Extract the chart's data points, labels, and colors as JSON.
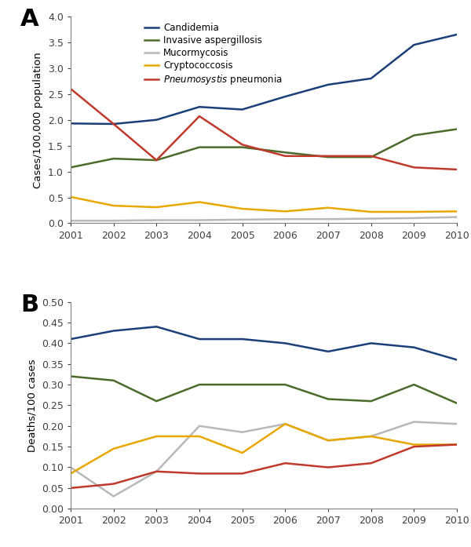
{
  "years": [
    2001,
    2002,
    2003,
    2004,
    2005,
    2006,
    2007,
    2008,
    2009,
    2010
  ],
  "panel_A": {
    "candidemia": [
      1.93,
      1.92,
      2.0,
      2.25,
      2.2,
      2.45,
      2.68,
      2.8,
      3.45,
      3.65
    ],
    "inv_aspergillosis": [
      1.08,
      1.25,
      1.22,
      1.47,
      1.47,
      1.37,
      1.28,
      1.28,
      1.7,
      1.82
    ],
    "mucormycosis": [
      0.05,
      0.05,
      0.06,
      0.06,
      0.07,
      0.08,
      0.08,
      0.09,
      0.1,
      0.12
    ],
    "cryptococcosis": [
      0.51,
      0.34,
      0.31,
      0.41,
      0.28,
      0.23,
      0.3,
      0.22,
      0.22,
      0.23
    ],
    "pneumocystosis": [
      2.6,
      1.92,
      1.22,
      2.07,
      1.52,
      1.3,
      1.3,
      1.3,
      1.08,
      1.04
    ],
    "ylim": [
      0.0,
      4.0
    ],
    "yticks": [
      0.0,
      0.5,
      1.0,
      1.5,
      2.0,
      2.5,
      3.0,
      3.5,
      4.0
    ],
    "ylabel": "Cases/100,000 population"
  },
  "panel_B": {
    "candidemia": [
      0.41,
      0.43,
      0.44,
      0.41,
      0.41,
      0.4,
      0.38,
      0.4,
      0.39,
      0.36
    ],
    "inv_aspergillosis": [
      0.32,
      0.31,
      0.26,
      0.3,
      0.3,
      0.3,
      0.265,
      0.26,
      0.3,
      0.255
    ],
    "mucormycosis": [
      0.1,
      0.03,
      0.09,
      0.2,
      0.185,
      0.205,
      0.165,
      0.175,
      0.21,
      0.205
    ],
    "cryptococcosis": [
      0.085,
      0.145,
      0.175,
      0.175,
      0.135,
      0.205,
      0.165,
      0.175,
      0.155,
      0.155
    ],
    "pneumocystosis": [
      0.05,
      0.06,
      0.09,
      0.085,
      0.085,
      0.11,
      0.1,
      0.11,
      0.15,
      0.155
    ],
    "ylim": [
      0.0,
      0.5
    ],
    "yticks": [
      0.0,
      0.05,
      0.1,
      0.15,
      0.2,
      0.25,
      0.3,
      0.35,
      0.4,
      0.45,
      0.5
    ],
    "ylabel": "Deaths/100 cases"
  },
  "colors": {
    "candidemia": "#1a3f7a",
    "inv_aspergillosis": "#4a6b2a",
    "mucormycosis": "#b8b8b8",
    "cryptococcosis": "#e8a800",
    "pneumocystosis": "#c0392b"
  },
  "linewidth": 1.8,
  "panel_A_label": "A",
  "panel_B_label": "B"
}
